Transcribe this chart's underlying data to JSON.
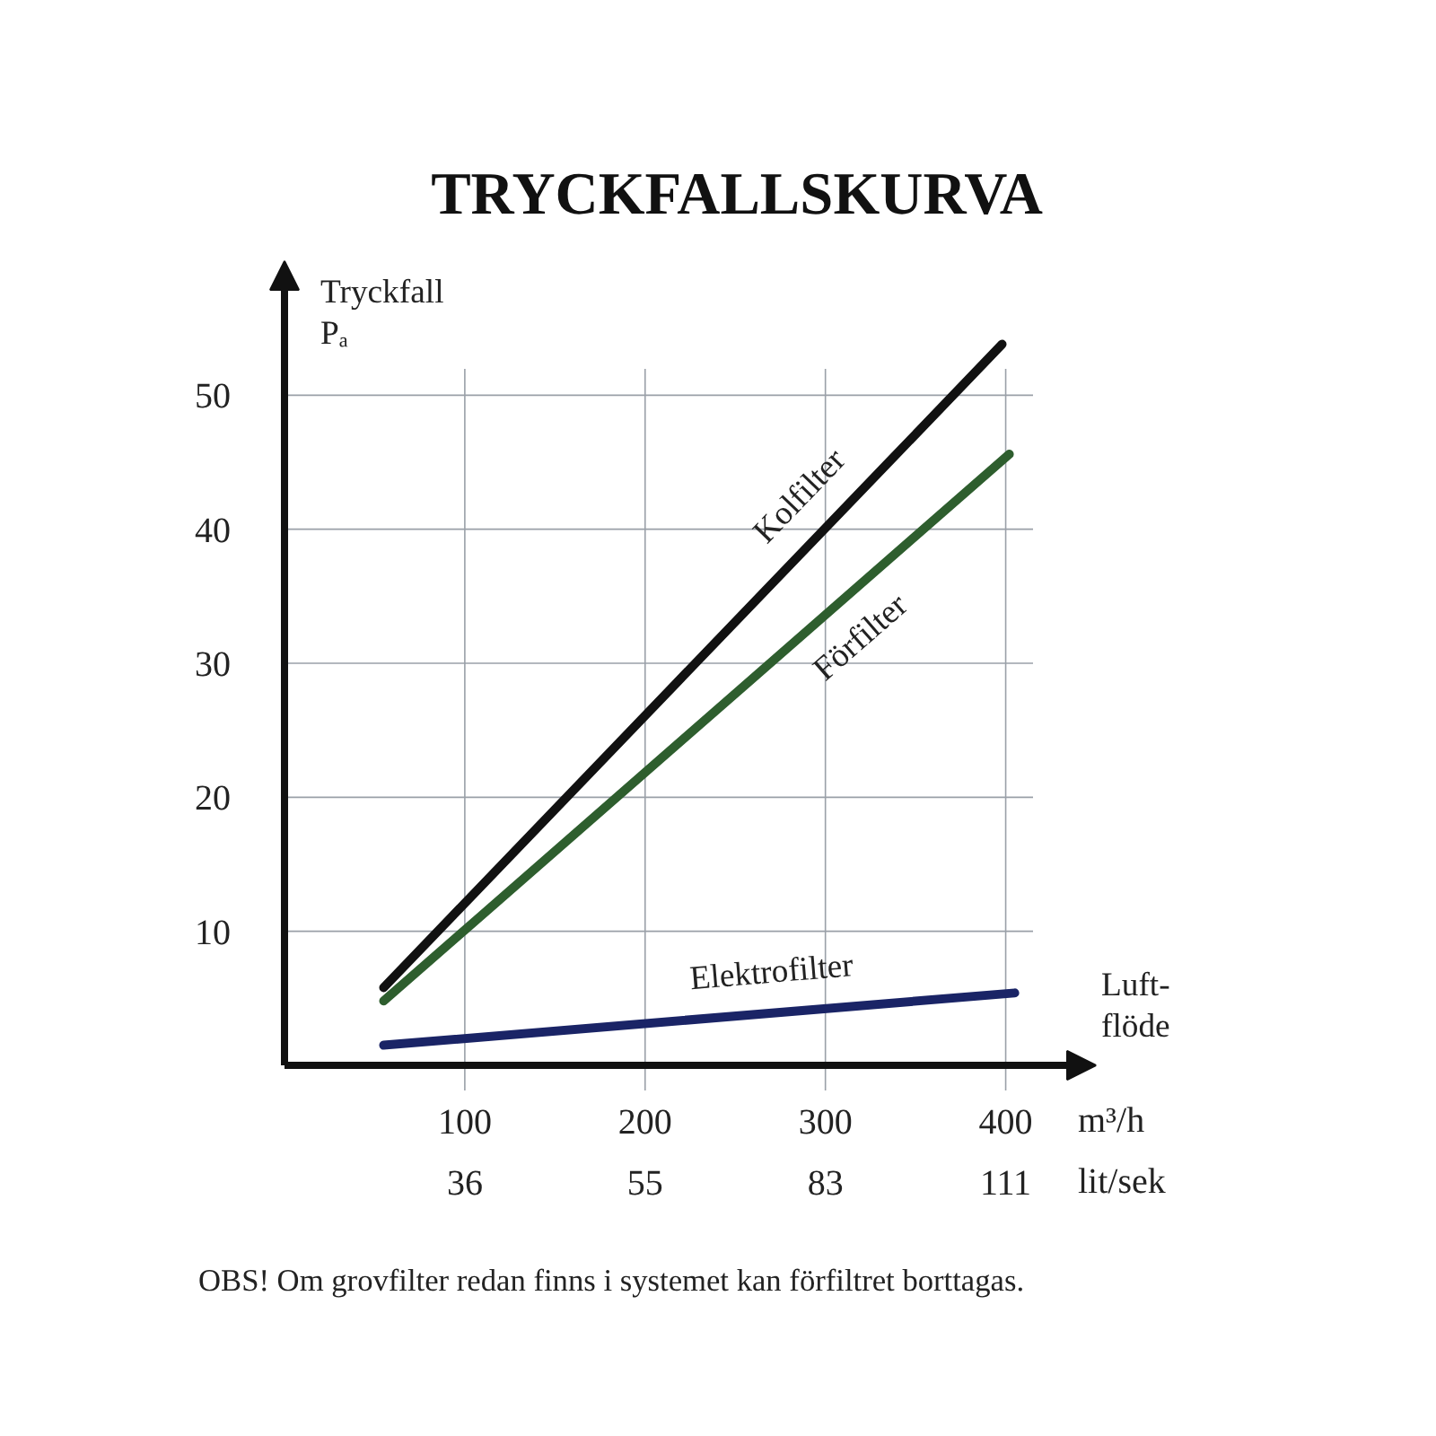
{
  "chart_data": {
    "type": "line",
    "title": "TRYCKFALLSKURVA",
    "ylabel": "Tryckfall\nPₐ",
    "xlabel": "m³/h",
    "xlim": [
      0,
      450
    ],
    "xticks": [
      100,
      200,
      300,
      400
    ],
    "ylim": [
      0,
      60
    ],
    "yticks": [
      10,
      20,
      30,
      40,
      50
    ],
    "grid": true,
    "marker": "none",
    "line_style": "solid",
    "annotations": [
      "Luft-\nflöde",
      "36",
      "55",
      "83",
      "111",
      "lit/sek",
      "OBS! Om grovfilter redan finns i systemet kan förfiltret borttagas."
    ],
    "series": [
      {
        "name": "Kolfilter",
        "color": "#111111",
        "x": [
          55,
          398
        ],
        "values": [
          5.8,
          53.8
        ]
      },
      {
        "name": "Förfilter",
        "color": "#2e5e2e",
        "x": [
          55,
          402
        ],
        "values": [
          4.8,
          45.6
        ]
      },
      {
        "name": "Elektrofilter",
        "color": "#1a2466",
        "x": [
          55,
          405
        ],
        "values": [
          1.5,
          5.4
        ]
      }
    ]
  }
}
